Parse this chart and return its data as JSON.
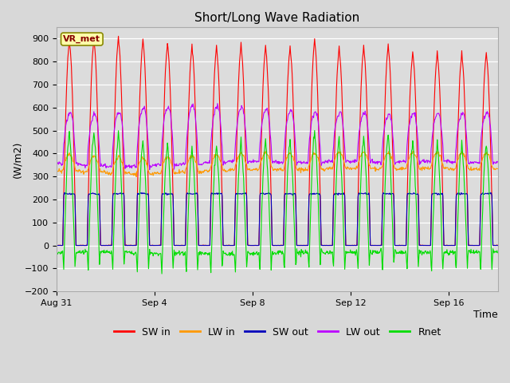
{
  "title": "Short/Long Wave Radiation",
  "xlabel": "Time",
  "ylabel": "(W/m2)",
  "ylim": [
    -200,
    950
  ],
  "yticks": [
    -200,
    -100,
    0,
    100,
    200,
    300,
    400,
    500,
    600,
    700,
    800,
    900
  ],
  "x_tick_labels": [
    "Aug 31",
    "Sep 4",
    "Sep 8",
    "Sep 12",
    "Sep 16"
  ],
  "x_tick_positions": [
    0,
    4,
    8,
    12,
    16
  ],
  "total_days": 18,
  "station_label": "VR_met",
  "legend_entries": [
    "SW in",
    "LW in",
    "SW out",
    "LW out",
    "Rnet"
  ],
  "line_colors": [
    "#ff0000",
    "#ff9900",
    "#0000bb",
    "#bb00ff",
    "#00dd00"
  ],
  "background_color": "#e8e8e8",
  "title_fontsize": 11,
  "axis_fontsize": 9,
  "legend_fontsize": 9,
  "sw_day_peaks": [
    870,
    875,
    880,
    870,
    855,
    845,
    840,
    850,
    840,
    840,
    870,
    835,
    840,
    845,
    815,
    815,
    812,
    815
  ],
  "sw_noon_spikes": [
    900,
    905,
    910,
    900,
    885,
    875,
    870,
    880,
    870,
    870,
    900,
    865,
    870,
    875,
    845,
    845,
    842,
    845
  ],
  "lw_in_base": [
    325,
    320,
    315,
    310,
    315,
    320,
    325,
    330,
    332,
    330,
    330,
    335,
    335,
    332,
    335,
    335,
    332,
    332
  ],
  "lw_out_night": [
    355,
    350,
    345,
    345,
    350,
    355,
    360,
    365,
    365,
    362,
    362,
    365,
    365,
    362,
    365,
    365,
    362,
    362
  ],
  "lw_out_day_peak": [
    590,
    585,
    595,
    615,
    620,
    625,
    620,
    615,
    605,
    600,
    595,
    590,
    590,
    585,
    590,
    590,
    590,
    595
  ],
  "rnet_night": [
    -65,
    -65,
    -67,
    -68,
    -68,
    -68,
    -68,
    -68,
    -68,
    -68,
    -68,
    -68,
    -68,
    -68,
    -68,
    -68,
    -68,
    -68
  ],
  "sw_out_day_flat": 225
}
